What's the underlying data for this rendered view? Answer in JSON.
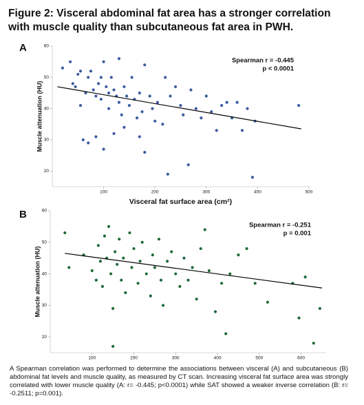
{
  "title_lines": [
    "Figure 2: Visceral abdominal fat area has a stronger correlation",
    "with muscle quality than subcutaneous fat area in PWH."
  ],
  "caption": "A Spearman correlation was performed to determine the associations between visceral (A) and subcutaneous (B) abdominal fat levels and muscle quality, as measured by CT scan. Increasing visceral fat surface area was strongly correlated with lower muscle quality (A: r= -0.445; p<0.0001)  while SAT showed a weaker inverse correlation (B: r= -0.2511; p=0.001).",
  "chart_data": [
    {
      "type": "scatter",
      "panel_label": "A",
      "x_label": "Visceral fat surface area (cm²)",
      "y_label": "Muscle attenuation (HU)",
      "annotation": [
        "Spearman r = -0.445",
        "p < 0.0001"
      ],
      "color": "#3b5b9f",
      "xlim": [
        0,
        500
      ],
      "ylim": [
        15,
        60
      ],
      "xticks": [
        100,
        200,
        300,
        400,
        500
      ],
      "yticks": [
        20,
        30,
        40,
        50,
        60
      ],
      "x": [
        20,
        35,
        40,
        45,
        50,
        55,
        55,
        60,
        65,
        70,
        70,
        75,
        80,
        85,
        85,
        90,
        95,
        95,
        100,
        100,
        105,
        110,
        110,
        115,
        120,
        120,
        125,
        130,
        130,
        135,
        140,
        140,
        145,
        150,
        155,
        160,
        165,
        170,
        170,
        175,
        180,
        180,
        190,
        195,
        200,
        205,
        215,
        220,
        225,
        230,
        240,
        250,
        255,
        265,
        270,
        280,
        290,
        300,
        310,
        320,
        330,
        340,
        350,
        360,
        370,
        380,
        390,
        395,
        480
      ],
      "values": [
        53,
        55,
        48,
        47,
        51,
        52,
        41,
        30,
        45,
        29,
        50,
        52,
        46,
        44,
        31,
        48,
        50,
        43,
        55,
        27,
        47,
        45,
        40,
        50,
        46,
        32,
        44,
        56,
        42,
        38,
        47,
        34,
        44,
        41,
        50,
        43,
        37,
        45,
        31,
        39,
        54,
        26,
        44,
        40,
        36,
        42,
        35,
        50,
        19,
        44,
        47,
        41,
        38,
        22,
        46,
        40,
        37,
        44,
        39,
        33,
        41,
        42,
        37,
        42,
        33,
        40,
        18,
        36,
        41
      ],
      "trendline": {
        "x": [
          10,
          485
        ],
        "y": [
          47,
          33.5
        ]
      }
    },
    {
      "type": "scatter",
      "panel_label": "B",
      "x_label": "Subcutaneous fat surface area (cm²)",
      "y_label": "Muscle attenuation (HU)",
      "annotation": [
        "Spearman r = -0.251",
        "p = 0.001"
      ],
      "color": "#1e6b3c",
      "xlim": [
        0,
        660
      ],
      "ylim": [
        15,
        60
      ],
      "xticks": [
        100,
        200,
        300,
        400,
        500,
        600
      ],
      "yticks": [
        20,
        30,
        40,
        50,
        60
      ],
      "x": [
        35,
        45,
        80,
        100,
        110,
        115,
        120,
        125,
        130,
        135,
        140,
        145,
        150,
        150,
        155,
        160,
        165,
        170,
        175,
        180,
        190,
        195,
        200,
        210,
        215,
        220,
        230,
        240,
        245,
        250,
        260,
        265,
        270,
        280,
        290,
        300,
        310,
        320,
        330,
        340,
        350,
        360,
        370,
        380,
        395,
        410,
        420,
        430,
        450,
        470,
        490,
        520,
        580,
        595,
        610,
        630,
        645
      ],
      "values": [
        53,
        42,
        46,
        41,
        38,
        49,
        44,
        36,
        52,
        45,
        55,
        40,
        29,
        17,
        47,
        43,
        51,
        38,
        45,
        34,
        53,
        42,
        48,
        37,
        44,
        50,
        40,
        33,
        46,
        42,
        51,
        38,
        30,
        44,
        47,
        40,
        36,
        45,
        38,
        42,
        32,
        48,
        54,
        41,
        28,
        37,
        21,
        40,
        46,
        48,
        37,
        31,
        37,
        26,
        39,
        18,
        29
      ],
      "trendline": {
        "x": [
          35,
          650
        ],
        "y": [
          46.5,
          35.5
        ]
      }
    }
  ]
}
